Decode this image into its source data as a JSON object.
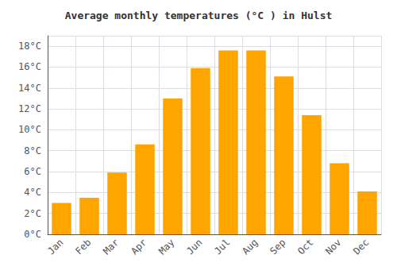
{
  "chart_data": {
    "type": "bar",
    "title": "Average monthly temperatures (°C ) in Hulst",
    "categories": [
      "Jan",
      "Feb",
      "Mar",
      "Apr",
      "May",
      "Jun",
      "Jul",
      "Aug",
      "Sep",
      "Oct",
      "Nov",
      "Dec"
    ],
    "values": [
      3.0,
      3.5,
      5.9,
      8.6,
      13.0,
      15.9,
      17.6,
      17.6,
      15.1,
      11.4,
      6.8,
      4.1
    ],
    "color": "#FFA500",
    "ylim": [
      0,
      19
    ],
    "yticks": [
      {
        "value": 0,
        "label": "0°C"
      },
      {
        "value": 2,
        "label": "2°C"
      },
      {
        "value": 4,
        "label": "4°C"
      },
      {
        "value": 6,
        "label": "6°C"
      },
      {
        "value": 8,
        "label": "8°C"
      },
      {
        "value": 10,
        "label": "10°C"
      },
      {
        "value": 12,
        "label": "12°C"
      },
      {
        "value": 14,
        "label": "14°C"
      },
      {
        "value": 16,
        "label": "16°C"
      },
      {
        "value": 18,
        "label": "18°C"
      }
    ],
    "grid": true
  }
}
